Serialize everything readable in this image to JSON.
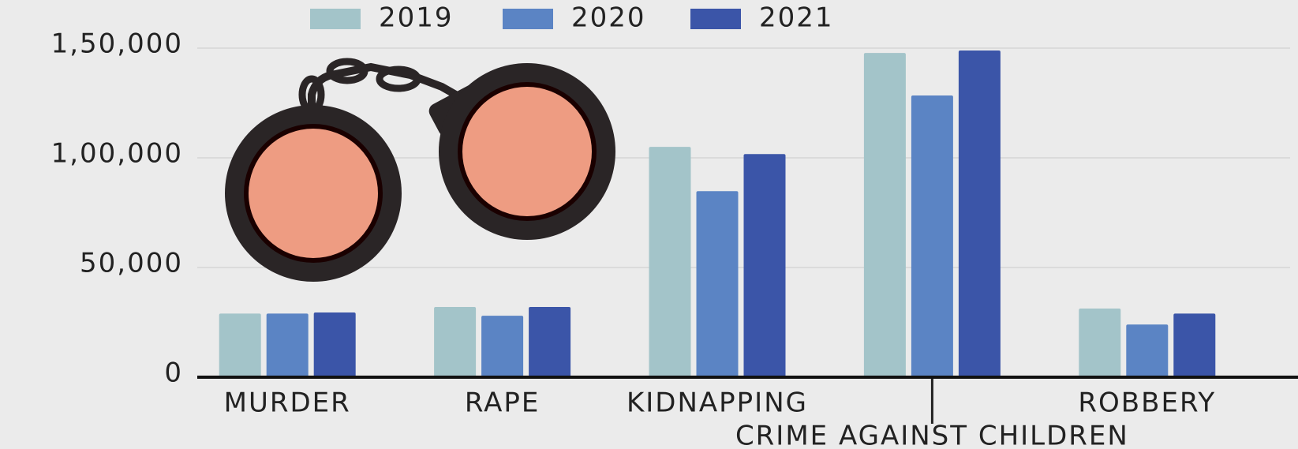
{
  "chart_data": {
    "type": "bar",
    "categories": [
      "MURDER",
      "RAPE",
      "KIDNAPPING",
      "CRIME AGAINST CHILDREN",
      "ROBBERY"
    ],
    "series": [
      {
        "name": "2019",
        "color": "#a3c4c9",
        "values": [
          29000,
          32000,
          105000,
          147800,
          31300
        ]
      },
      {
        "name": "2020",
        "color": "#5b84c4",
        "values": [
          29000,
          28000,
          84800,
          128400,
          24000
        ]
      },
      {
        "name": "2021",
        "color": "#3b55a8",
        "values": [
          29500,
          32000,
          101700,
          148900,
          29000
        ]
      }
    ],
    "ylim": [
      0,
      150000
    ],
    "yticks": [
      0,
      {
        "value": 50000,
        "label": "50,000"
      },
      {
        "value": 100000,
        "label": "1,00,000"
      },
      {
        "value": 150000,
        "label": "1,50,000"
      }
    ],
    "grid": true
  }
}
